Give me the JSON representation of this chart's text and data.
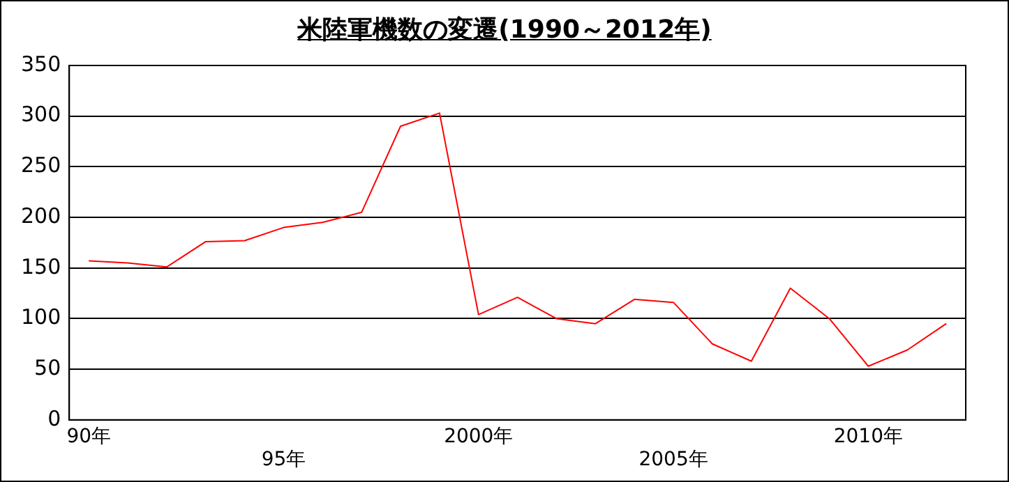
{
  "chart_data": {
    "type": "line",
    "title": "米陸軍機数の変遷(1990～2012年)",
    "categories": [
      "90年",
      null,
      null,
      null,
      null,
      "95年",
      null,
      null,
      null,
      null,
      "2000年",
      null,
      null,
      null,
      null,
      "2005年",
      null,
      null,
      null,
      null,
      "2010年",
      null,
      null
    ],
    "series": [
      {
        "color": "#ff0000",
        "values": [
          157,
          155,
          151,
          176,
          177,
          190,
          195,
          205,
          290,
          303,
          104,
          121,
          100,
          95,
          119,
          116,
          75,
          58,
          130,
          100,
          53,
          69,
          95
        ]
      }
    ],
    "ylim": [
      0,
      350
    ],
    "yticks": [
      0,
      50,
      100,
      150,
      200,
      250,
      300,
      350
    ],
    "grid": "y",
    "legend": false,
    "marker": "none"
  }
}
